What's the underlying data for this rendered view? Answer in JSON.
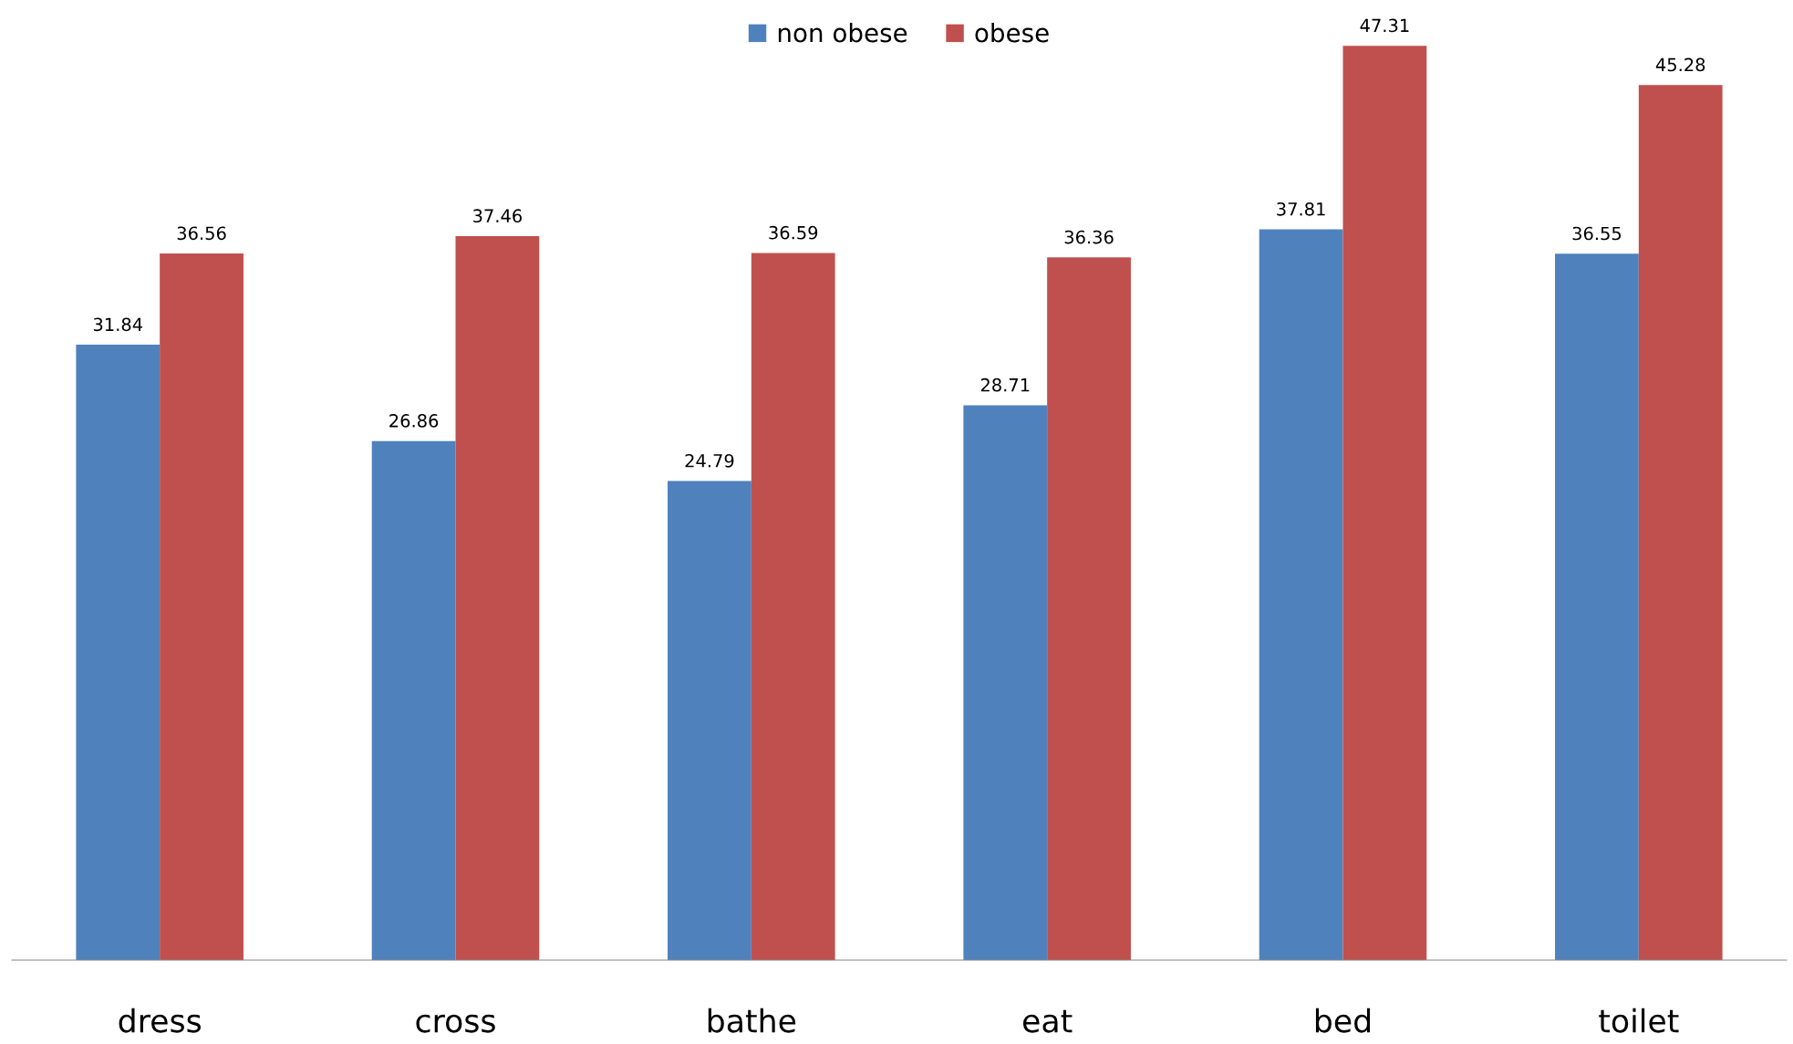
{
  "chart_data": {
    "type": "bar",
    "categories": [
      "dress",
      "cross",
      "bathe",
      "eat",
      "bed",
      "toilet"
    ],
    "series": [
      {
        "name": "non obese",
        "color": "#4f81bd",
        "values": [
          31.84,
          26.86,
          24.79,
          28.71,
          37.81,
          36.55
        ]
      },
      {
        "name": "obese",
        "color": "#c0504d",
        "values": [
          36.56,
          37.46,
          36.59,
          36.36,
          47.31,
          45.28
        ]
      }
    ],
    "data_labels": true,
    "legend": "top",
    "grid": false,
    "tick_labels": "x"
  }
}
